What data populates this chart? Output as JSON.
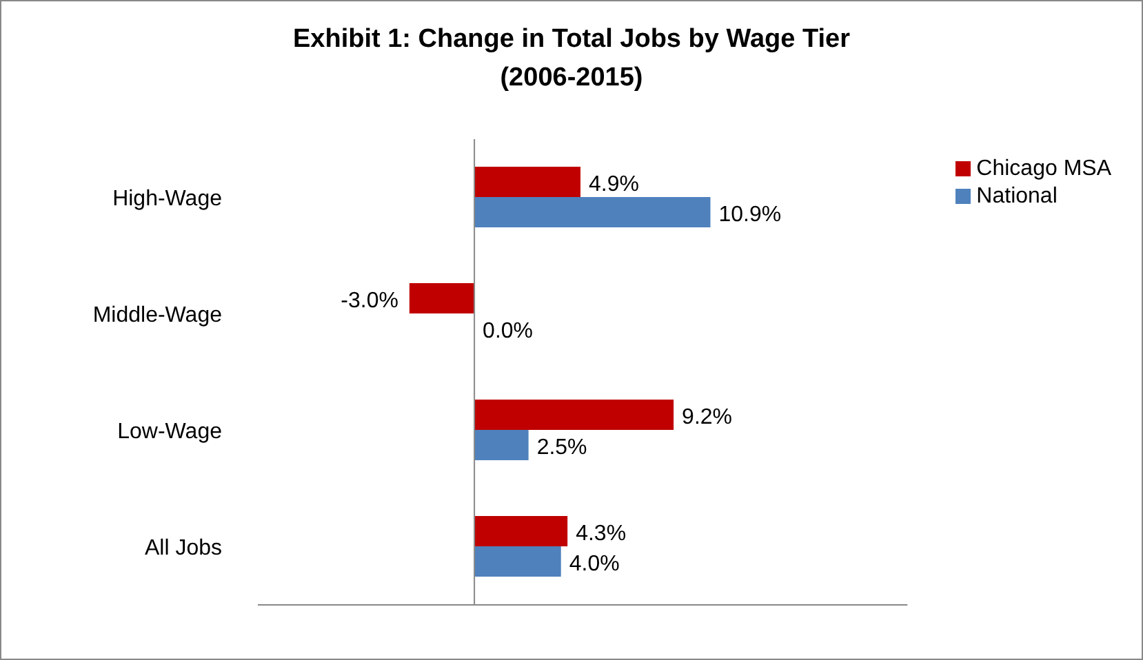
{
  "chart_data": {
    "type": "bar",
    "orientation": "horizontal",
    "title": "Exhibit 1: Change in Total Jobs by Wage Tier\n(2006-2015)",
    "categories": [
      "High-Wage",
      "Middle-Wage",
      "Low-Wage",
      "All Jobs"
    ],
    "series": [
      {
        "name": "Chicago MSA",
        "color": "#c00000",
        "values": [
          4.9,
          -3.0,
          9.2,
          4.3
        ],
        "value_labels": [
          "4.9%",
          "-3.0%",
          "9.2%",
          "4.3%"
        ]
      },
      {
        "name": "National",
        "color": "#4f81bd",
        "values": [
          10.9,
          0.0,
          2.5,
          4.0
        ],
        "value_labels": [
          "10.9%",
          "0.0%",
          "2.5%",
          "4.0%"
        ]
      }
    ],
    "xlim": [
      -10,
      20
    ],
    "tick_labels": "y",
    "legend": "top right"
  }
}
